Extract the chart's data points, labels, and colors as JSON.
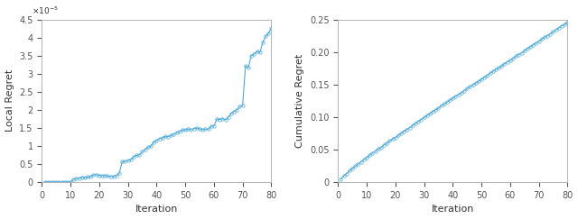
{
  "left_xlabel": "Iteration",
  "left_ylabel": "Local Regret",
  "right_xlabel": "Iteration",
  "right_ylabel": "Cumulative Regret",
  "left_xlim": [
    0,
    80
  ],
  "left_ylim": [
    0,
    4.5e-05
  ],
  "right_xlim": [
    0,
    80
  ],
  "right_ylim": [
    0,
    0.25
  ],
  "left_yticks": [
    0,
    5e-06,
    1e-05,
    1.5e-05,
    2e-05,
    2.5e-05,
    3e-05,
    3.5e-05,
    4e-05,
    4.5e-05
  ],
  "left_yticklabels": [
    "0",
    "0.5",
    "1",
    "1.5",
    "2",
    "2.5",
    "3",
    "3.5",
    "4",
    "4.5"
  ],
  "right_yticks": [
    0,
    0.05,
    0.1,
    0.15,
    0.2,
    0.25
  ],
  "right_yticklabels": [
    "0",
    "0.05",
    "0.10",
    "0.15",
    "0.20",
    "0.25"
  ],
  "left_xticks": [
    0,
    10,
    20,
    30,
    40,
    50,
    60,
    70,
    80
  ],
  "right_xticks": [
    0,
    10,
    20,
    30,
    40,
    50,
    60,
    70,
    80
  ],
  "line_color": "#4DAADC",
  "marker": "o",
  "markersize": 2.5,
  "linewidth": 0.8,
  "background_color": "#ffffff",
  "axes_bg": "#ffffff",
  "spine_color": "#aaaaaa",
  "tick_color": "#555555",
  "label_color": "#333333"
}
